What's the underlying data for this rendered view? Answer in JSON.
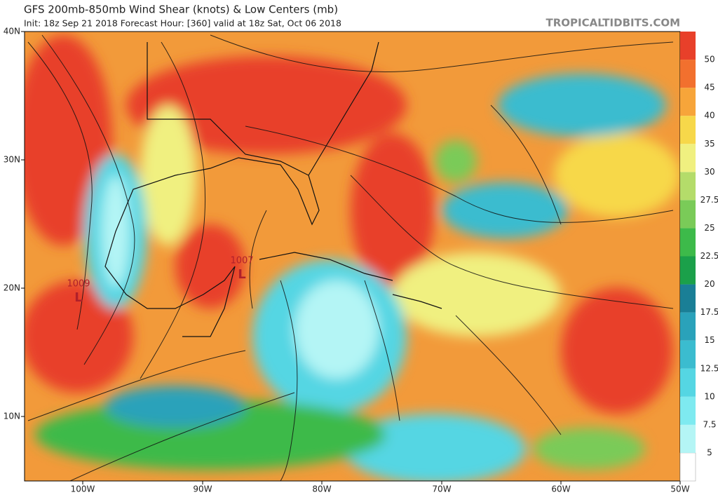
{
  "header": {
    "title": "GFS 200mb-850mb Wind Shear (knots) & Low Centers (mb)",
    "subtitle": "Init: 18z Sep 21 2018   Forecast Hour: [360]   valid at 18z Sat, Oct 06 2018",
    "site": "TROPICALTIDBITS.COM"
  },
  "axes": {
    "latitudes": [
      "40N",
      "30N",
      "20N",
      "10N"
    ],
    "longitudes": [
      "100W",
      "90W",
      "80W",
      "70W",
      "60W",
      "50W"
    ]
  },
  "lows": [
    {
      "pressure": 1009,
      "symbol": "L"
    },
    {
      "pressure": 1007,
      "symbol": "L"
    }
  ],
  "colorbar": {
    "levels": [
      5,
      7.5,
      10,
      12.5,
      15,
      17.5,
      20,
      22.5,
      25,
      27.5,
      30,
      35,
      40,
      45,
      50
    ],
    "colors": [
      "#ffffff",
      "#b4f5f5",
      "#7eeaf0",
      "#55d6e3",
      "#3bbccf",
      "#2aa2ba",
      "#1a7f96",
      "#1ba04a",
      "#3dba4a",
      "#7acb58",
      "#b4dc6a",
      "#f0f080",
      "#f7d84a",
      "#f7a53a",
      "#f2702e",
      "#e8402a"
    ]
  }
}
